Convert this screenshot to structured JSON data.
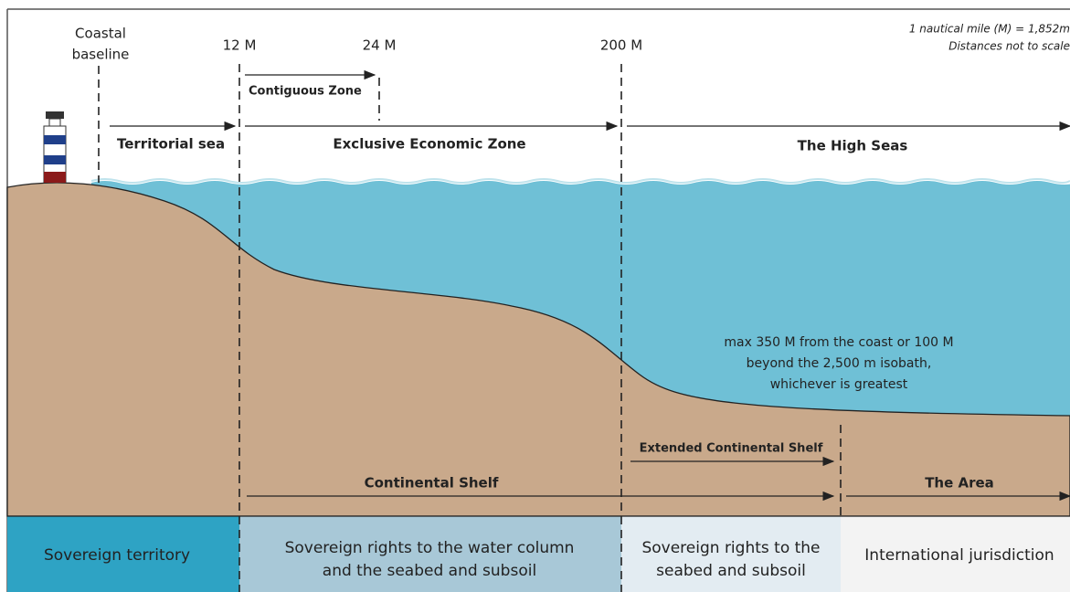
{
  "markers": {
    "baseline": [
      "Coastal",
      "baseline"
    ],
    "m12": "12 M",
    "m24": "24 M",
    "m200": "200 M"
  },
  "note": [
    "1 nautical mile (M) = 1,852m",
    "Distances not to scale"
  ],
  "zones": {
    "contiguous": "Contiguous Zone",
    "territorial": "Territorial sea",
    "eez": "Exclusive Economic Zone",
    "high_seas": "The High Seas",
    "extended_shelf": "Extended Continental Shelf",
    "continental_shelf": "Continental Shelf",
    "area": "The Area"
  },
  "shelf_note": [
    "max 350 M from the coast or 100 M",
    "beyond the 2,500 m isobath,",
    "whichever is greatest"
  ],
  "jurisdiction": [
    [
      "Sovereign territory"
    ],
    [
      "Sovereign rights to the water column",
      "and the seabed and subsoil"
    ],
    [
      "Sovereign rights to the",
      "seabed and subsoil"
    ],
    [
      "International jurisdiction"
    ]
  ]
}
